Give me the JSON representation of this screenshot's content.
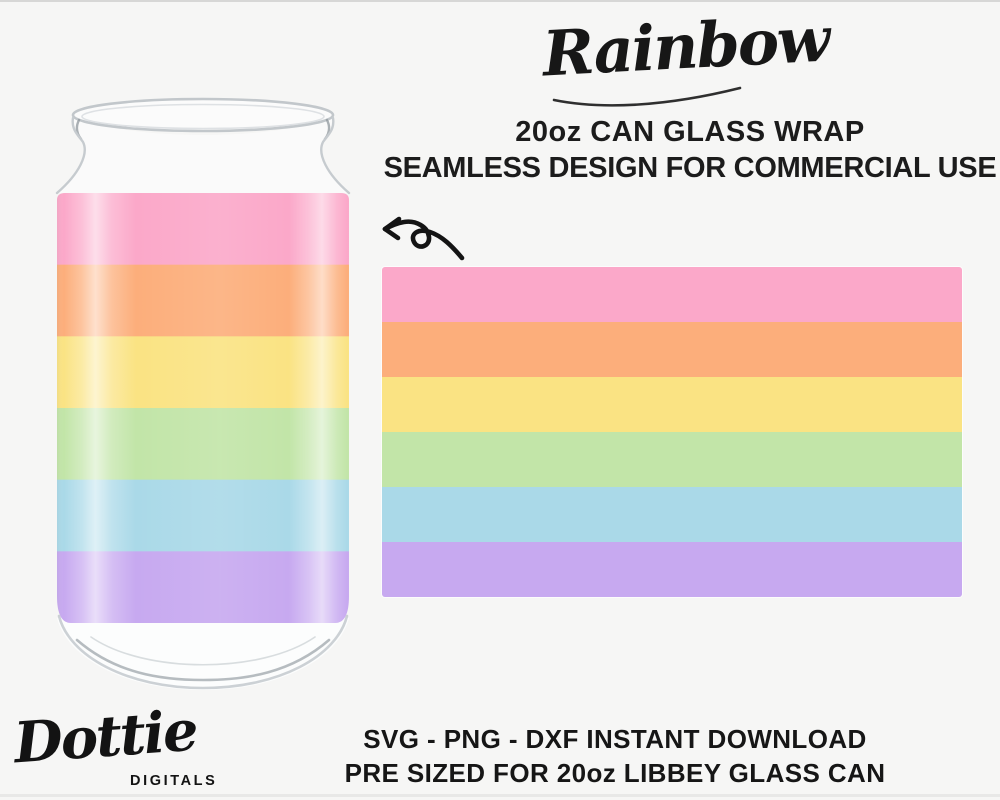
{
  "page": {
    "background_color": "#f6f6f5",
    "text_color": "#1b1b1b"
  },
  "header": {
    "script_title": "Rainbow",
    "line1": "20oz CAN GLASS WRAP",
    "line2": "SEAMLESS DESIGN FOR COMMERCIAL USE"
  },
  "stripes": {
    "names": [
      "pink",
      "orange",
      "yellow",
      "green",
      "blue",
      "purple"
    ],
    "colors": [
      "#FBA8C9",
      "#FCAE7B",
      "#FAE383",
      "#C2E5A8",
      "#AAD9E8",
      "#C7A9F0"
    ]
  },
  "mockup": {
    "left_object": "20oz libbey glass can with rainbow stripe wrap",
    "right_object": "flat seamless wrap design rectangle"
  },
  "icons": {
    "arrow": "curly-arrow-pointing-left"
  },
  "logo": {
    "script": "Dottie",
    "caps": "DIGITALS"
  },
  "footer": {
    "line1": "SVG - PNG - DXF INSTANT DOWNLOAD",
    "line2": "PRE SIZED FOR 20oz LIBBEY GLASS CAN"
  }
}
